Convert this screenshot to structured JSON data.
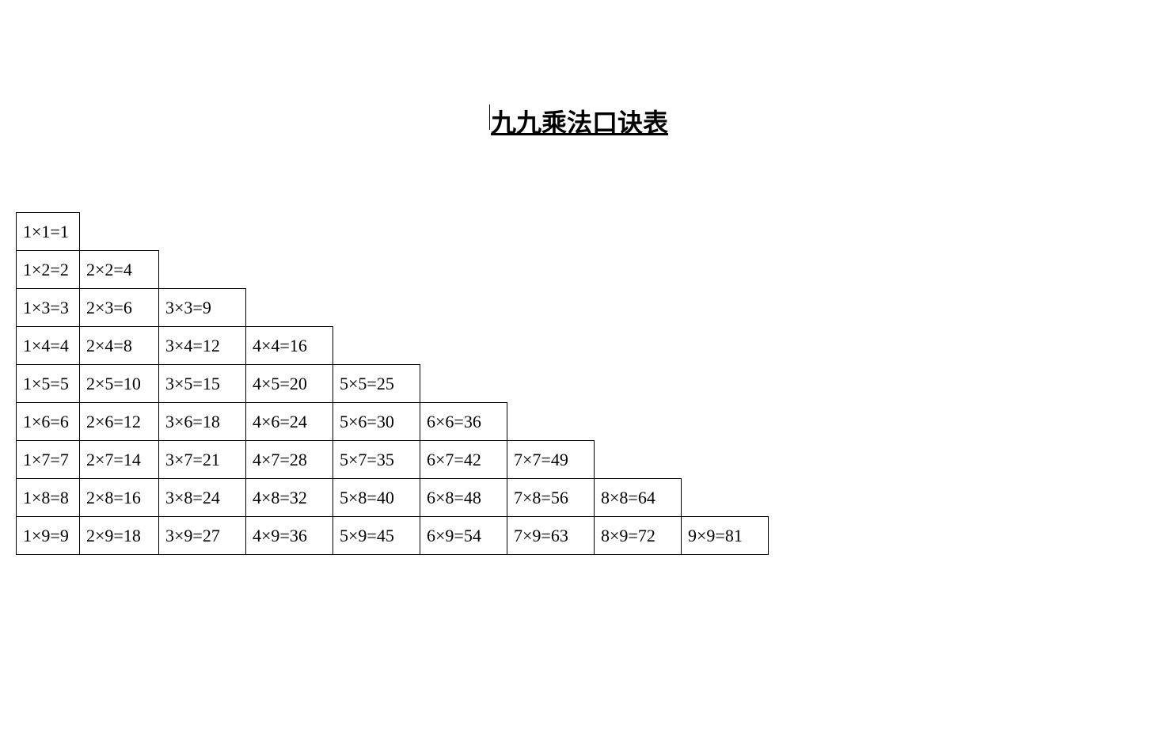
{
  "title": "九九乘法口诀表",
  "table": {
    "type": "table",
    "background_color": "#ffffff",
    "border_color": "#000000",
    "text_color": "#000000",
    "font_size_pt": 16,
    "title_font_size_pt": 24,
    "title_font_weight": "bold",
    "title_underline": true,
    "cell_border_width": 1.5,
    "row_count": 9,
    "col_count": 9,
    "rows": [
      [
        "1×1=1"
      ],
      [
        "1×2=2",
        "2×2=4"
      ],
      [
        "1×3=3",
        "2×3=6",
        "3×3=9"
      ],
      [
        "1×4=4",
        "2×4=8",
        "3×4=12",
        "4×4=16"
      ],
      [
        "1×5=5",
        "2×5=10",
        "3×5=15",
        "4×5=20",
        "5×5=25"
      ],
      [
        "1×6=6",
        "2×6=12",
        "3×6=18",
        "4×6=24",
        "5×6=30",
        "6×6=36"
      ],
      [
        "1×7=7",
        "2×7=14",
        "3×7=21",
        "4×7=28",
        "5×7=35",
        "6×7=42",
        "7×7=49"
      ],
      [
        "1×8=8",
        "2×8=16",
        "3×8=24",
        "4×8=32",
        "5×8=40",
        "6×8=48",
        "7×8=56",
        "8×8=64"
      ],
      [
        "1×9=9",
        "2×9=18",
        "3×9=27",
        "4×9=36",
        "5×9=45",
        "6×9=54",
        "7×9=63",
        "8×9=72",
        "9×9=81"
      ]
    ]
  }
}
